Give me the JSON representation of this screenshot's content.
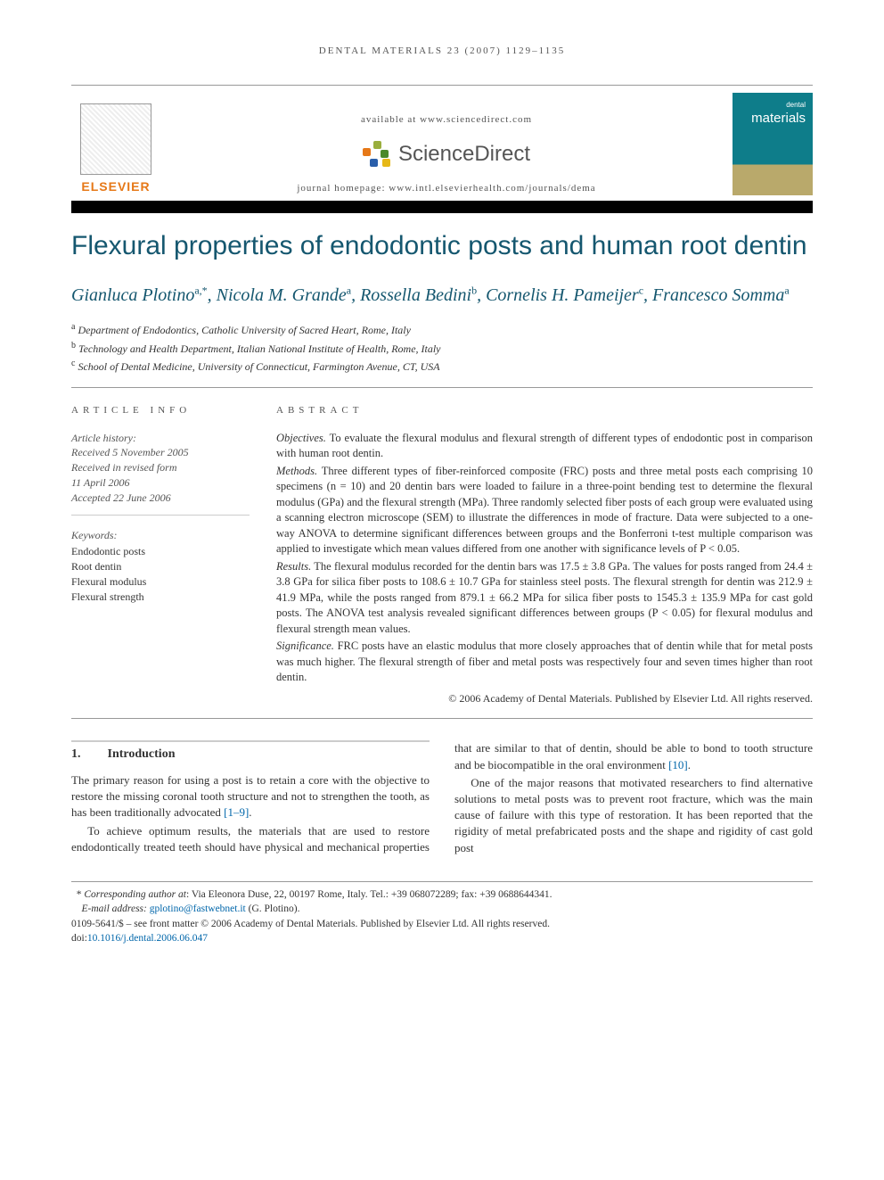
{
  "running_head": "DENTAL MATERIALS 23 (2007) 1129–1135",
  "header": {
    "available_at": "available at www.sciencedirect.com",
    "sd_text": "ScienceDirect",
    "journal_homepage": "journal homepage: www.intl.elsevierhealth.com/journals/dema",
    "elsevier": "ELSEVIER",
    "cover_small": "dental",
    "cover_big": "materials"
  },
  "title": "Flexural properties of endodontic posts and human root dentin",
  "authors_html": "Gianluca Plotino<sup>a,*</sup>, Nicola M. Grande<sup>a</sup>, Rossella Bedini<sup>b</sup>, Cornelis H. Pameijer<sup>c</sup>, Francesco Somma<sup>a</sup>",
  "affiliations": [
    {
      "sup": "a",
      "text": "Department of Endodontics, Catholic University of Sacred Heart, Rome, Italy"
    },
    {
      "sup": "b",
      "text": "Technology and Health Department, Italian National Institute of Health, Rome, Italy"
    },
    {
      "sup": "c",
      "text": "School of Dental Medicine, University of Connecticut, Farmington Avenue, CT, USA"
    }
  ],
  "article_info": {
    "heading": "ARTICLE INFO",
    "history_label": "Article history:",
    "history": [
      "Received 5 November 2005",
      "Received in revised form",
      "11 April 2006",
      "Accepted 22 June 2006"
    ],
    "keywords_label": "Keywords:",
    "keywords": [
      "Endodontic posts",
      "Root dentin",
      "Flexural modulus",
      "Flexural strength"
    ]
  },
  "abstract": {
    "heading": "ABSTRACT",
    "objectives_label": "Objectives.",
    "objectives": " To evaluate the flexural modulus and flexural strength of different types of endodontic post in comparison with human root dentin.",
    "methods_label": "Methods.",
    "methods": " Three different types of fiber-reinforced composite (FRC) posts and three metal posts each comprising 10 specimens (n = 10) and 20 dentin bars were loaded to failure in a three-point bending test to determine the flexural modulus (GPa) and the flexural strength (MPa). Three randomly selected fiber posts of each group were evaluated using a scanning electron microscope (SEM) to illustrate the differences in mode of fracture. Data were subjected to a one-way ANOVA to determine significant differences between groups and the Bonferroni t-test multiple comparison was applied to investigate which mean values differed from one another with significance levels of P < 0.05.",
    "results_label": "Results.",
    "results": " The flexural modulus recorded for the dentin bars was 17.5 ± 3.8 GPa. The values for posts ranged from 24.4 ± 3.8 GPa for silica fiber posts to 108.6 ± 10.7 GPa for stainless steel posts. The flexural strength for dentin was 212.9 ± 41.9 MPa, while the posts ranged from 879.1 ± 66.2 MPa for silica fiber posts to 1545.3 ± 135.9 MPa for cast gold posts. The ANOVA test analysis revealed significant differences between groups (P < 0.05) for flexural modulus and flexural strength mean values.",
    "significance_label": "Significance.",
    "significance": " FRC posts have an elastic modulus that more closely approaches that of dentin while that for metal posts was much higher. The flexural strength of fiber and metal posts was respectively four and seven times higher than root dentin.",
    "copyright": "© 2006 Academy of Dental Materials. Published by Elsevier Ltd. All rights reserved."
  },
  "section1": {
    "num": "1.",
    "title": "Introduction",
    "p1_a": "The primary reason for using a post is to retain a core with the objective to restore the missing coronal tooth structure and not to strengthen the tooth, as has been traditionally advocated ",
    "p1_ref": "[1–9]",
    "p1_b": ".",
    "p2_a": "To achieve optimum results, the materials that are used to restore endodontically treated teeth should have physical and mechanical properties that are similar to that of dentin, should be able to bond to tooth structure and be biocompatible in the oral environment ",
    "p2_ref": "[10]",
    "p2_b": ".",
    "p3": "One of the major reasons that motivated researchers to find alternative solutions to metal posts was to prevent root fracture, which was the main cause of failure with this type of restoration. It has been reported that the rigidity of metal prefabricated posts and the shape and rigidity of cast gold post"
  },
  "footer": {
    "corr_label": "Corresponding author at",
    "corr_text": ": Via Eleonora Duse, 22, 00197 Rome, Italy. Tel.: +39 068072289; fax: +39 0688644341.",
    "email_label": "E-mail address:",
    "email": " gplotino@fastwebnet.it",
    "email_owner": " (G. Plotino).",
    "issn_line": "0109-5641/$ – see front matter © 2006 Academy of Dental Materials. Published by Elsevier Ltd. All rights reserved.",
    "doi_label": "doi:",
    "doi": "10.1016/j.dental.2006.06.047"
  },
  "colors": {
    "brand_teal": "#15576f",
    "elsevier_orange": "#e67817",
    "link_blue": "#0066aa",
    "cover_teal": "#0e7d8a",
    "cover_gold": "#b9a96b"
  }
}
